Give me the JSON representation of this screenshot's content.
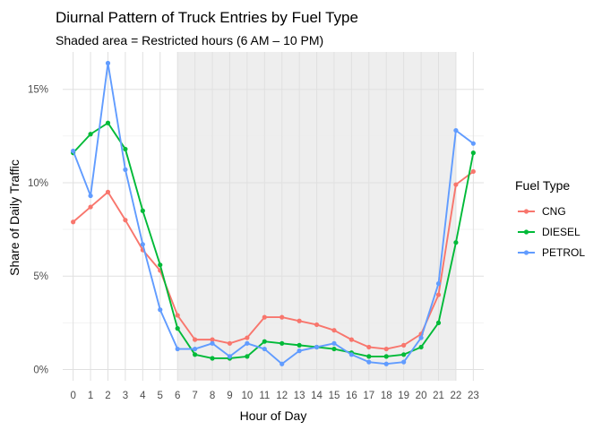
{
  "chart_data": {
    "type": "line",
    "title": "Diurnal Pattern of Truck Entries by Fuel Type",
    "subtitle": "Shaded area = Restricted hours (6 AM – 10 PM)",
    "xlabel": "Hour of Day",
    "ylabel": "Share of Daily Traffic",
    "x": [
      0,
      1,
      2,
      3,
      4,
      5,
      6,
      7,
      8,
      9,
      10,
      11,
      12,
      13,
      14,
      15,
      16,
      17,
      18,
      19,
      20,
      21,
      22,
      23
    ],
    "x_ticks": [
      "0",
      "1",
      "2",
      "3",
      "4",
      "5",
      "6",
      "7",
      "8",
      "9",
      "10",
      "11",
      "12",
      "13",
      "14",
      "15",
      "16",
      "17",
      "18",
      "19",
      "20",
      "21",
      "22",
      "23"
    ],
    "xlim": [
      -0.6,
      23.6
    ],
    "ylim": [
      -0.6,
      17.0
    ],
    "y_ticks": [
      0,
      5,
      10,
      15
    ],
    "y_tick_labels": [
      "0%",
      "5%",
      "10%",
      "15%"
    ],
    "shaded_region": [
      6,
      22
    ],
    "grid": true,
    "legend": {
      "title": "Fuel Type",
      "position": "right"
    },
    "series": [
      {
        "name": "CNG",
        "color": "#F8766D",
        "values": [
          7.9,
          8.7,
          9.5,
          8.0,
          6.4,
          5.3,
          2.9,
          1.6,
          1.6,
          1.4,
          1.7,
          2.8,
          2.8,
          2.6,
          2.4,
          2.1,
          1.6,
          1.2,
          1.1,
          1.3,
          1.9,
          4.0,
          9.9,
          10.6
        ]
      },
      {
        "name": "DIESEL",
        "color": "#00BA38",
        "values": [
          11.6,
          12.6,
          13.2,
          11.8,
          8.5,
          5.6,
          2.2,
          0.8,
          0.6,
          0.6,
          0.7,
          1.5,
          1.4,
          1.3,
          1.2,
          1.1,
          0.9,
          0.7,
          0.7,
          0.8,
          1.2,
          2.5,
          6.8,
          11.6
        ]
      },
      {
        "name": "PETROL",
        "color": "#619CFF",
        "values": [
          11.7,
          9.3,
          16.4,
          10.7,
          6.7,
          3.2,
          1.1,
          1.1,
          1.4,
          0.7,
          1.4,
          1.1,
          0.3,
          1.0,
          1.2,
          1.4,
          0.8,
          0.4,
          0.3,
          0.4,
          1.7,
          4.6,
          12.8,
          12.1
        ]
      }
    ]
  }
}
